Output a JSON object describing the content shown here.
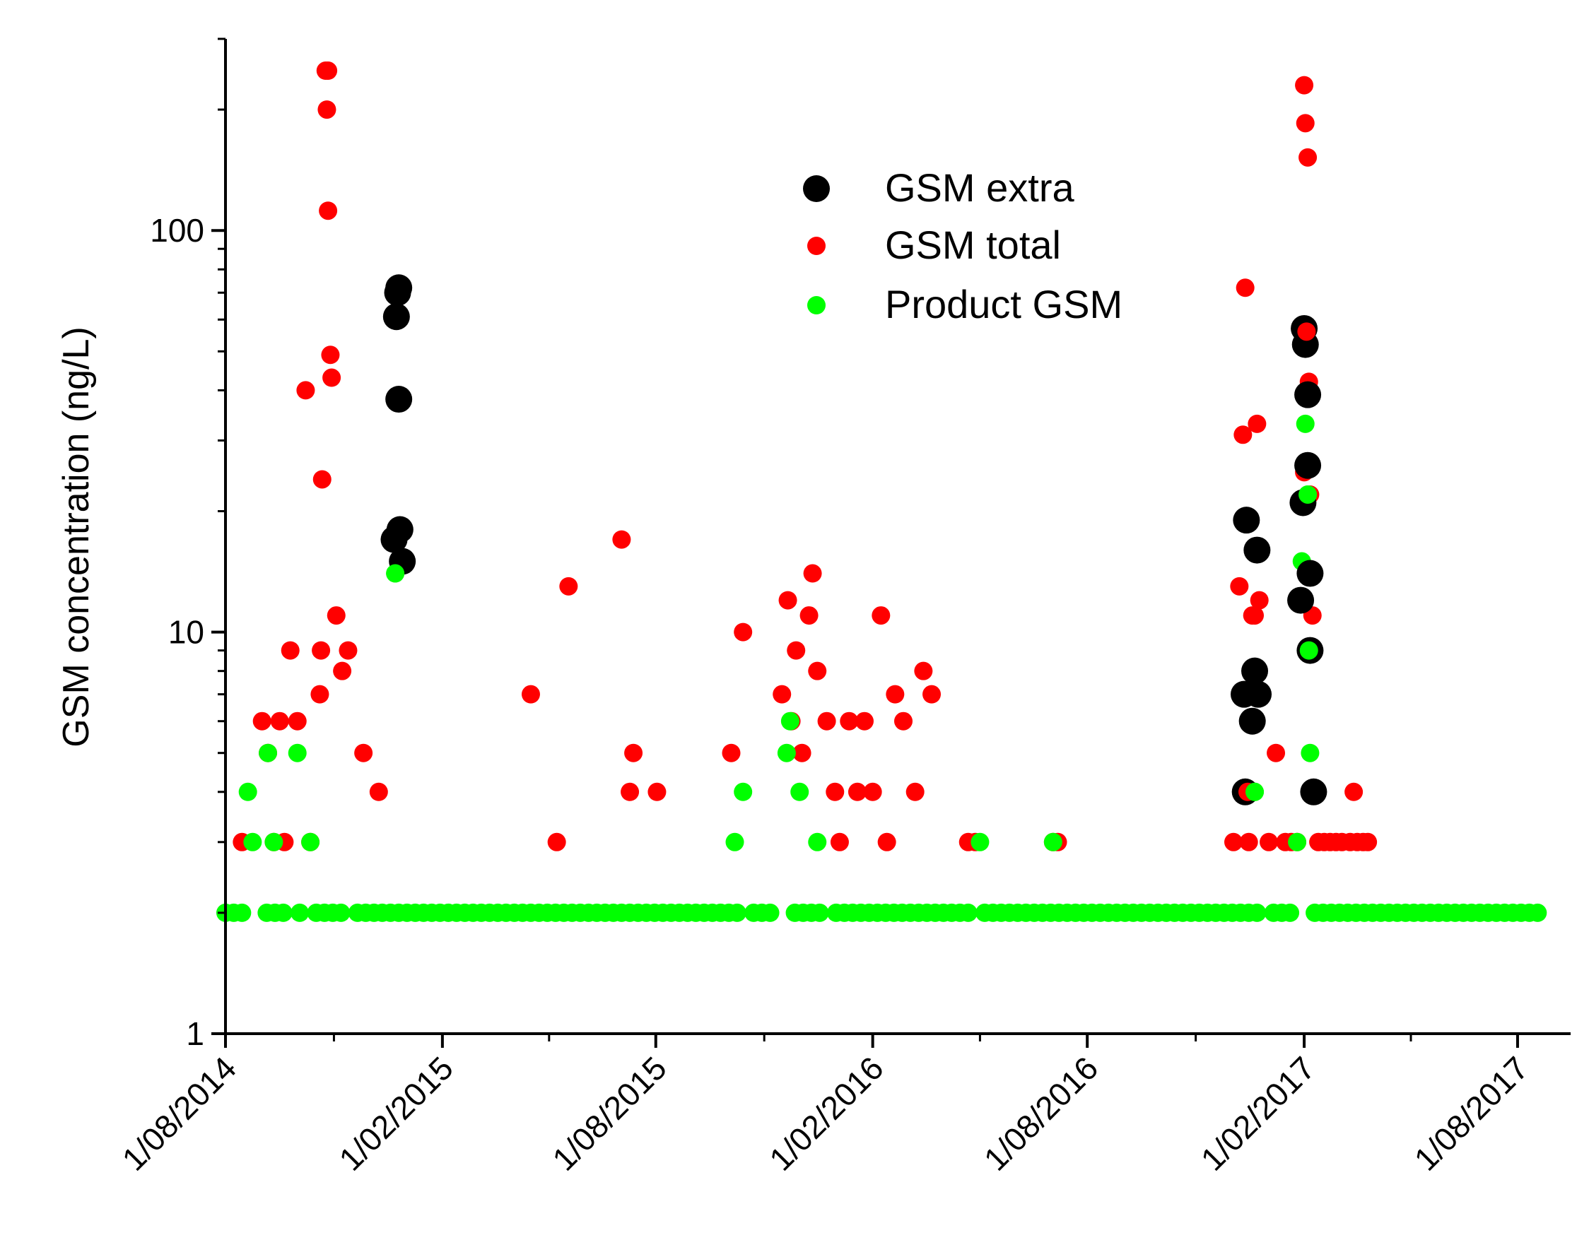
{
  "chart_data": {
    "type": "scatter",
    "title": "",
    "xlabel": "",
    "ylabel": "GSM concentration (ng/L)",
    "yscale": "log",
    "ylim": [
      1,
      300
    ],
    "xlim": [
      "2014-08-01",
      "2017-09-15"
    ],
    "x_ticks": [
      {
        "date": "2014-08-01",
        "label": "1/08/2014"
      },
      {
        "date": "2015-02-01",
        "label": "1/02/2015"
      },
      {
        "date": "2015-08-01",
        "label": "1/08/2015"
      },
      {
        "date": "2016-02-01",
        "label": "1/02/2016"
      },
      {
        "date": "2016-08-01",
        "label": "1/08/2016"
      },
      {
        "date": "2017-02-01",
        "label": "1/02/2017"
      },
      {
        "date": "2017-08-01",
        "label": "1/08/2017"
      }
    ],
    "y_ticks": [
      {
        "value": 1,
        "label": "1"
      },
      {
        "value": 10,
        "label": "10"
      },
      {
        "value": 100,
        "label": "100"
      }
    ],
    "legend_position": "top-center",
    "grid": false,
    "series": [
      {
        "name": "GSM extra",
        "color": "#000000",
        "marker": "large-circle",
        "points": [
          [
            "2014-12-22",
            17
          ],
          [
            "2014-12-24",
            61
          ],
          [
            "2014-12-25",
            70
          ],
          [
            "2014-12-26",
            72
          ],
          [
            "2014-12-26",
            38
          ],
          [
            "2014-12-27",
            18
          ],
          [
            "2014-12-29",
            15
          ],
          [
            "2016-12-12",
            7
          ],
          [
            "2016-12-13",
            4
          ],
          [
            "2016-12-14",
            19
          ],
          [
            "2016-12-19",
            6
          ],
          [
            "2016-12-21",
            8
          ],
          [
            "2016-12-23",
            16
          ],
          [
            "2016-12-24",
            7
          ],
          [
            "2017-01-29",
            12
          ],
          [
            "2017-01-31",
            21
          ],
          [
            "2017-02-01",
            57
          ],
          [
            "2017-02-02",
            52
          ],
          [
            "2017-02-04",
            39
          ],
          [
            "2017-02-04",
            26
          ],
          [
            "2017-02-06",
            14
          ],
          [
            "2017-02-06",
            9
          ],
          [
            "2017-02-09",
            4
          ]
        ]
      },
      {
        "name": "GSM total",
        "color": "#ff0000",
        "marker": "circle",
        "points": [
          [
            "2014-08-15",
            3
          ],
          [
            "2014-09-01",
            6
          ],
          [
            "2014-09-06",
            5
          ],
          [
            "2014-09-11",
            3
          ],
          [
            "2014-09-16",
            6
          ],
          [
            "2014-09-20",
            3
          ],
          [
            "2014-09-25",
            9
          ],
          [
            "2014-10-01",
            6
          ],
          [
            "2014-10-08",
            40
          ],
          [
            "2014-10-12",
            3
          ],
          [
            "2014-10-20",
            7
          ],
          [
            "2014-10-21",
            9
          ],
          [
            "2014-10-22",
            24
          ],
          [
            "2014-10-25",
            250
          ],
          [
            "2014-10-26",
            200
          ],
          [
            "2014-10-27",
            250
          ],
          [
            "2014-10-27",
            112
          ],
          [
            "2014-10-29",
            49
          ],
          [
            "2014-10-30",
            43
          ],
          [
            "2014-11-03",
            11
          ],
          [
            "2014-11-08",
            8
          ],
          [
            "2014-11-13",
            9
          ],
          [
            "2014-11-26",
            5
          ],
          [
            "2014-12-09",
            4
          ],
          [
            "2015-04-17",
            7
          ],
          [
            "2015-05-09",
            3
          ],
          [
            "2015-05-19",
            13
          ],
          [
            "2015-07-03",
            17
          ],
          [
            "2015-07-10",
            4
          ],
          [
            "2015-07-13",
            5
          ],
          [
            "2015-08-02",
            4
          ],
          [
            "2015-10-04",
            5
          ],
          [
            "2015-10-14",
            10
          ],
          [
            "2015-11-16",
            7
          ],
          [
            "2015-11-21",
            12
          ],
          [
            "2015-11-24",
            6
          ],
          [
            "2015-11-28",
            9
          ],
          [
            "2015-12-03",
            5
          ],
          [
            "2015-12-09",
            11
          ],
          [
            "2015-12-12",
            14
          ],
          [
            "2015-12-16",
            8
          ],
          [
            "2015-12-24",
            6
          ],
          [
            "2015-12-31",
            4
          ],
          [
            "2016-01-04",
            3
          ],
          [
            "2016-01-12",
            6
          ],
          [
            "2016-01-19",
            4
          ],
          [
            "2016-01-25",
            6
          ],
          [
            "2016-02-01",
            4
          ],
          [
            "2016-02-08",
            11
          ],
          [
            "2016-02-13",
            3
          ],
          [
            "2016-02-20",
            7
          ],
          [
            "2016-02-27",
            6
          ],
          [
            "2016-03-08",
            4
          ],
          [
            "2016-03-15",
            8
          ],
          [
            "2016-03-22",
            7
          ],
          [
            "2016-04-22",
            3
          ],
          [
            "2016-04-28",
            3
          ],
          [
            "2016-07-03",
            3
          ],
          [
            "2016-07-07",
            3
          ],
          [
            "2016-12-03",
            3
          ],
          [
            "2016-12-08",
            13
          ],
          [
            "2016-12-11",
            31
          ],
          [
            "2016-12-13",
            72
          ],
          [
            "2016-12-15",
            4
          ],
          [
            "2016-12-16",
            3
          ],
          [
            "2016-12-19",
            11
          ],
          [
            "2016-12-21",
            11
          ],
          [
            "2016-12-23",
            33
          ],
          [
            "2016-12-25",
            12
          ],
          [
            "2017-01-02",
            3
          ],
          [
            "2017-01-08",
            5
          ],
          [
            "2017-01-16",
            3
          ],
          [
            "2017-01-21",
            3
          ],
          [
            "2017-01-26",
            3
          ],
          [
            "2017-02-01",
            25
          ],
          [
            "2017-02-01",
            230
          ],
          [
            "2017-02-02",
            185
          ],
          [
            "2017-02-03",
            56
          ],
          [
            "2017-02-04",
            152
          ],
          [
            "2017-02-05",
            42
          ],
          [
            "2017-02-06",
            22
          ],
          [
            "2017-02-08",
            11
          ],
          [
            "2017-02-13",
            3
          ],
          [
            "2017-02-18",
            3
          ],
          [
            "2017-02-23",
            3
          ],
          [
            "2017-02-28",
            3
          ],
          [
            "2017-03-05",
            3
          ],
          [
            "2017-03-12",
            3
          ],
          [
            "2017-03-15",
            4
          ],
          [
            "2017-03-18",
            3
          ],
          [
            "2017-03-23",
            3
          ],
          [
            "2017-03-27",
            3
          ]
        ]
      },
      {
        "name": "Product GSM",
        "color": "#00ff00",
        "marker": "circle",
        "points": [
          [
            "2014-08-20",
            4
          ],
          [
            "2014-08-24",
            3
          ],
          [
            "2014-09-06",
            5
          ],
          [
            "2014-09-11",
            3
          ],
          [
            "2014-10-01",
            5
          ],
          [
            "2014-10-12",
            3
          ],
          [
            "2014-12-23",
            14
          ],
          [
            "2015-10-07",
            3
          ],
          [
            "2015-10-14",
            4
          ],
          [
            "2015-11-20",
            5
          ],
          [
            "2015-11-23",
            6
          ],
          [
            "2015-12-01",
            4
          ],
          [
            "2015-12-16",
            3
          ],
          [
            "2016-05-02",
            3
          ],
          [
            "2016-07-03",
            3
          ],
          [
            "2016-12-21",
            4
          ],
          [
            "2017-01-26",
            3
          ],
          [
            "2017-01-30",
            15
          ],
          [
            "2017-02-02",
            33
          ],
          [
            "2017-02-04",
            22
          ],
          [
            "2017-02-05",
            9
          ],
          [
            "2017-02-06",
            5
          ]
        ],
        "baseline": {
          "value": 2,
          "start": "2014-08-01",
          "end": "2017-08-21",
          "step_days": 7,
          "gaps": [
            [
              "2014-08-21",
              "2014-09-01"
            ],
            [
              "2014-09-07",
              "2014-09-11"
            ],
            [
              "2014-09-25",
              "2014-10-01"
            ],
            [
              "2014-10-07",
              "2014-10-14"
            ],
            [
              "2014-11-10",
              "2014-11-20"
            ],
            [
              "2015-10-10",
              "2015-10-18"
            ],
            [
              "2015-11-10",
              "2015-11-20"
            ],
            [
              "2015-12-22",
              "2015-12-30"
            ],
            [
              "2016-04-28",
              "2016-05-05"
            ],
            [
              "2016-12-26",
              "2017-01-01"
            ],
            [
              "2017-01-24",
              "2017-02-08"
            ]
          ]
        }
      }
    ]
  }
}
